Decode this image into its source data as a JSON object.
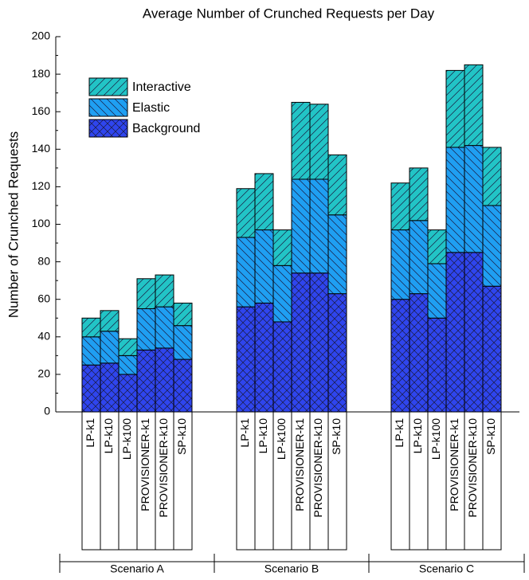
{
  "chart_data": {
    "type": "bar",
    "stacked": true,
    "title": "Average Number of Crunched Requests per Day",
    "y_label": "Number of Crunched Requests",
    "groups": [
      "Scenario A",
      "Scenario B",
      "Scenario C"
    ],
    "categories": [
      "LP-k1",
      "LP-k10",
      "LP-k100",
      "PROVISIONER-k1",
      "PROVISIONER-k10",
      "SP-k10",
      "LP-k1",
      "LP-k10",
      "LP-k100",
      "PROVISIONER-k1",
      "PROVISIONER-k10",
      "SP-k10",
      "LP-k1",
      "LP-k10",
      "LP-k100",
      "PROVISIONER-k1",
      "PROVISIONER-k10",
      "SP-k10"
    ],
    "series": [
      {
        "name": "Background",
        "color": "#2f45ee",
        "hatch": "x",
        "values": [
          25,
          26,
          20,
          33,
          34,
          28,
          56,
          58,
          48,
          74,
          74,
          63,
          60,
          63,
          50,
          85,
          85,
          67
        ]
      },
      {
        "name": "Elastic",
        "color": "#1f9ff2",
        "hatch": "\\",
        "values": [
          15,
          17,
          10,
          22,
          22,
          18,
          37,
          39,
          30,
          50,
          50,
          42,
          37,
          39,
          29,
          56,
          57,
          43
        ]
      },
      {
        "name": "Interactive",
        "color": "#22c4c6",
        "hatch": "/",
        "values": [
          10,
          11,
          9,
          16,
          17,
          12,
          26,
          30,
          19,
          41,
          40,
          32,
          25,
          28,
          18,
          41,
          43,
          31
        ]
      }
    ],
    "ylim": [
      0,
      200
    ],
    "yticks": [
      0,
      20,
      40,
      60,
      80,
      100,
      120,
      140,
      160,
      180,
      200
    ],
    "legend": "upper-left"
  }
}
